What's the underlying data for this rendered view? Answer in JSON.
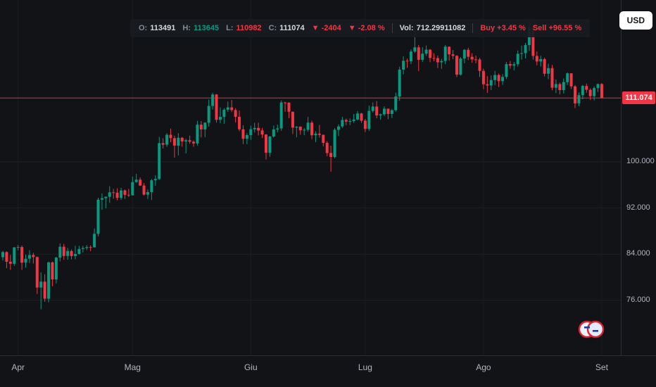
{
  "header": {
    "currency_button": "USD",
    "legend": {
      "open_label": "O:",
      "open": "113491",
      "high_label": "H:",
      "high": "113645",
      "low_label": "L:",
      "low": "110982",
      "close_label": "C:",
      "close": "111074",
      "change_abs": "▼ -2404",
      "change_pct": "▼ -2.08 %",
      "volume_label": "Vol:",
      "volume": "712.29911082",
      "buy": "Buy +3.45 %",
      "sell": "Sell +96.55 %"
    }
  },
  "price_axis": {
    "current": "111.074",
    "ticks": [
      {
        "price": 100000,
        "label": "100.000"
      },
      {
        "price": 92000,
        "label": "92.000"
      },
      {
        "price": 84000,
        "label": "84.000"
      },
      {
        "price": 76000,
        "label": "76.000"
      }
    ]
  },
  "time_axis": {
    "labels": [
      {
        "label": "Apr",
        "index": 4
      },
      {
        "label": "Mag",
        "index": 34
      },
      {
        "label": "Giu",
        "index": 65
      },
      {
        "label": "Lug",
        "index": 95
      },
      {
        "label": "Ago",
        "index": 126
      },
      {
        "label": "Set",
        "index": 157
      }
    ]
  },
  "chart_data": {
    "type": "candlestick",
    "symbol_currency": "USD",
    "current_price": 111074,
    "last_candle": {
      "open": 113491,
      "high": 113645,
      "low": 110982,
      "close": 111074
    },
    "change_abs": -2404,
    "change_pct": -2.08,
    "volume": 712.29911082,
    "buy_pct": 3.45,
    "sell_pct": 96.55,
    "ylim": [
      74000,
      126000
    ],
    "price_axis_ticks": [
      100000,
      92000,
      84000,
      76000
    ],
    "x_axis_months": [
      "Apr",
      "Mag",
      "Giu",
      "Lug",
      "Ago",
      "Set"
    ],
    "grid": true,
    "colors": {
      "up": "#089981",
      "down": "#f23645",
      "price_line": "#f23645"
    },
    "candle_format": [
      "open",
      "high",
      "low",
      "close"
    ],
    "candles": [
      [
        83466,
        84546,
        82894,
        84353
      ],
      [
        84353,
        84500,
        81562,
        82679
      ],
      [
        82679,
        83870,
        81293,
        82334
      ],
      [
        82334,
        85222,
        81980,
        85170
      ],
      [
        85170,
        85598,
        84660,
        85237
      ],
      [
        85237,
        85510,
        81278,
        82526
      ],
      [
        82526,
        83921,
        81662,
        83215
      ],
      [
        83215,
        84696,
        82470,
        83843
      ],
      [
        83843,
        84235,
        82377,
        83504
      ],
      [
        83504,
        83595,
        77097,
        78214
      ],
      [
        78214,
        80823,
        74436,
        79235
      ],
      [
        79235,
        80519,
        75746,
        76272
      ],
      [
        76272,
        82718,
        75650,
        82574
      ],
      [
        82574,
        82709,
        78426,
        79626
      ],
      [
        79626,
        83541,
        78936,
        83404
      ],
      [
        83404,
        85856,
        82750,
        85287
      ],
      [
        85287,
        85785,
        83027,
        83684
      ],
      [
        83684,
        85090,
        83034,
        84542
      ],
      [
        84542,
        84812,
        83096,
        83668
      ],
      [
        83668,
        85436,
        83110,
        84033
      ],
      [
        84033,
        85428,
        83935,
        84895
      ],
      [
        84895,
        85442,
        84302,
        85063
      ],
      [
        85063,
        85565,
        84715,
        85223
      ],
      [
        85223,
        85519,
        84527,
        85174
      ],
      [
        85174,
        88455,
        85157,
        87518
      ],
      [
        87518,
        93787,
        87068,
        93441
      ],
      [
        93441,
        94535,
        91697,
        93699
      ],
      [
        93699,
        94016,
        91943,
        93943
      ],
      [
        93943,
        95768,
        92898,
        94720
      ],
      [
        94720,
        95301,
        93622,
        94646
      ],
      [
        94646,
        95415,
        93340,
        93754
      ],
      [
        93754,
        95509,
        93404,
        95043
      ],
      [
        95043,
        95219,
        93582,
        94284
      ],
      [
        94284,
        95321,
        93911,
        94207
      ],
      [
        94207,
        97437,
        94154,
        96492
      ],
      [
        96492,
        97905,
        96371,
        96910
      ],
      [
        96910,
        97297,
        95816,
        95891
      ],
      [
        95891,
        96319,
        94170,
        94315
      ],
      [
        94315,
        95193,
        93566,
        94748
      ],
      [
        94748,
        97024,
        93399,
        96802
      ],
      [
        96802,
        97667,
        95841,
        97032
      ],
      [
        97032,
        104324,
        96872,
        103241
      ],
      [
        103241,
        104081,
        102313,
        102970
      ],
      [
        102970,
        104964,
        102600,
        104696
      ],
      [
        104696,
        105747,
        103373,
        104106
      ],
      [
        104106,
        104538,
        100717,
        102812
      ],
      [
        102812,
        104976,
        101109,
        104169
      ],
      [
        104169,
        104305,
        102620,
        103539
      ],
      [
        103539,
        103984,
        101459,
        103744
      ],
      [
        103744,
        104550,
        103139,
        103489
      ],
      [
        103489,
        103720,
        102612,
        103191
      ],
      [
        103191,
        107108,
        102836,
        106446
      ],
      [
        106446,
        107068,
        104222,
        105606
      ],
      [
        105606,
        106851,
        104262,
        106791
      ],
      [
        106791,
        110797,
        106102,
        109678
      ],
      [
        109678,
        111980,
        109058,
        111673
      ],
      [
        111673,
        111742,
        106812,
        107287
      ],
      [
        107287,
        109442,
        106719,
        107791
      ],
      [
        107791,
        109297,
        106601,
        109035
      ],
      [
        109035,
        110450,
        108650,
        109440
      ],
      [
        109440,
        110718,
        108631,
        108969
      ],
      [
        108969,
        109298,
        106816,
        107802
      ],
      [
        107802,
        108904,
        105319,
        105642
      ],
      [
        105642,
        106346,
        103101,
        103998
      ],
      [
        103998,
        104954,
        103062,
        104638
      ],
      [
        104638,
        106273,
        103804,
        105652
      ],
      [
        105652,
        106774,
        105094,
        105881
      ],
      [
        105881,
        106788,
        104563,
        105432
      ],
      [
        105432,
        105880,
        104103,
        104732
      ],
      [
        104732,
        104793,
        100414,
        101576
      ],
      [
        101576,
        104491,
        100885,
        104390
      ],
      [
        104390,
        106290,
        104199,
        105616
      ],
      [
        105616,
        106468,
        105116,
        105793
      ],
      [
        105793,
        110632,
        105370,
        110294
      ],
      [
        110294,
        110404,
        108674,
        110257
      ],
      [
        110257,
        110325,
        107566,
        108686
      ],
      [
        108686,
        108722,
        104816,
        105929
      ],
      [
        105929,
        106172,
        104261,
        106090
      ],
      [
        106090,
        106182,
        104699,
        105472
      ],
      [
        105472,
        105848,
        104601,
        105552
      ],
      [
        105552,
        107793,
        105208,
        106796
      ],
      [
        106796,
        107128,
        103949,
        104601
      ],
      [
        104601,
        105315,
        103389,
        104883
      ],
      [
        104883,
        106394,
        104221,
        104684
      ],
      [
        104684,
        104731,
        102664,
        103290
      ],
      [
        103290,
        103604,
        100966,
        101532
      ],
      [
        101532,
        102802,
        98286,
        100853
      ],
      [
        100853,
        105851,
        100632,
        105547
      ],
      [
        105547,
        106497,
        104481,
        106133
      ],
      [
        106133,
        107794,
        105872,
        107255
      ],
      [
        107255,
        107501,
        106351,
        106983
      ],
      [
        106983,
        107508,
        106372,
        107075
      ],
      [
        107075,
        108284,
        106766,
        107331
      ],
      [
        107331,
        108798,
        107166,
        108385
      ],
      [
        108385,
        108500,
        106766,
        107135
      ],
      [
        107135,
        107438,
        105159,
        105698
      ],
      [
        105698,
        109746,
        105364,
        108824
      ],
      [
        108824,
        110307,
        108551,
        109584
      ],
      [
        109584,
        110532,
        107542,
        108036
      ],
      [
        108036,
        108358,
        107303,
        108231
      ],
      [
        108231,
        109624,
        107949,
        109215
      ],
      [
        109215,
        109232,
        107403,
        108300
      ],
      [
        108300,
        109178,
        107592,
        108953
      ],
      [
        108953,
        111999,
        108689,
        111327
      ],
      [
        111327,
        116484,
        110597,
        115988
      ],
      [
        115988,
        118286,
        115159,
        117515
      ],
      [
        117515,
        117893,
        116286,
        117418
      ],
      [
        117418,
        119459,
        116934,
        119117
      ],
      [
        119117,
        123218,
        118869,
        119850
      ],
      [
        119850,
        120249,
        115712,
        117678
      ],
      [
        117678,
        119871,
        117303,
        118748
      ],
      [
        118748,
        120170,
        118361,
        119445
      ],
      [
        119445,
        119551,
        117269,
        118004
      ],
      [
        118004,
        118828,
        117417,
        117988
      ],
      [
        117988,
        118416,
        116268,
        117256
      ],
      [
        117256,
        117860,
        116123,
        117482
      ],
      [
        117482,
        120250,
        116918,
        119956
      ],
      [
        119956,
        119980,
        117539,
        118629
      ],
      [
        118629,
        119378,
        117807,
        118369
      ],
      [
        118369,
        118499,
        114686,
        115103
      ],
      [
        115103,
        118154,
        114951,
        117902
      ],
      [
        117902,
        119546,
        117093,
        119418
      ],
      [
        119418,
        119773,
        117630,
        118210
      ],
      [
        118210,
        118827,
        117184,
        117755
      ],
      [
        117755,
        118420,
        117085,
        117739
      ],
      [
        117739,
        118022,
        114705,
        115765
      ],
      [
        115765,
        116128,
        112625,
        113445
      ],
      [
        113445,
        114834,
        111961,
        113233
      ],
      [
        113233,
        114971,
        112431,
        114167
      ],
      [
        114167,
        115748,
        113270,
        115048
      ],
      [
        115048,
        115298,
        112966,
        113986
      ],
      [
        113986,
        115197,
        113333,
        114718
      ],
      [
        114718,
        117329,
        114351,
        116936
      ],
      [
        116936,
        117474,
        116141,
        116675
      ],
      [
        116675,
        117290,
        115870,
        116921
      ],
      [
        116921,
        119295,
        116511,
        118729
      ],
      [
        118729,
        120144,
        117706,
        118838
      ],
      [
        118838,
        120610,
        117922,
        120233
      ],
      [
        120233,
        124457,
        119219,
        123321
      ],
      [
        123321,
        123680,
        117714,
        118357
      ],
      [
        118357,
        119130,
        116736,
        117398
      ],
      [
        117398,
        118389,
        116542,
        117798
      ],
      [
        117798,
        118056,
        114807,
        115273
      ],
      [
        115273,
        117000,
        114341,
        116247
      ],
      [
        116247,
        116801,
        112411,
        112847
      ],
      [
        112847,
        114272,
        111924,
        113479
      ],
      [
        113479,
        113747,
        111690,
        112432
      ],
      [
        112432,
        114450,
        111839,
        113814
      ],
      [
        113814,
        115488,
        113305,
        115342
      ],
      [
        115342,
        115374,
        112624,
        113078
      ],
      [
        113078,
        113305,
        109316,
        110137
      ],
      [
        110137,
        112046,
        109660,
        111558
      ],
      [
        111558,
        113327,
        110856,
        113155
      ],
      [
        113155,
        113555,
        111975,
        112487
      ],
      [
        112487,
        112743,
        110713,
        111389
      ],
      [
        111389,
        113081,
        110662,
        112787
      ],
      [
        112787,
        113576,
        112091,
        113478
      ],
      [
        113491,
        113645,
        110982,
        111074
      ]
    ]
  }
}
